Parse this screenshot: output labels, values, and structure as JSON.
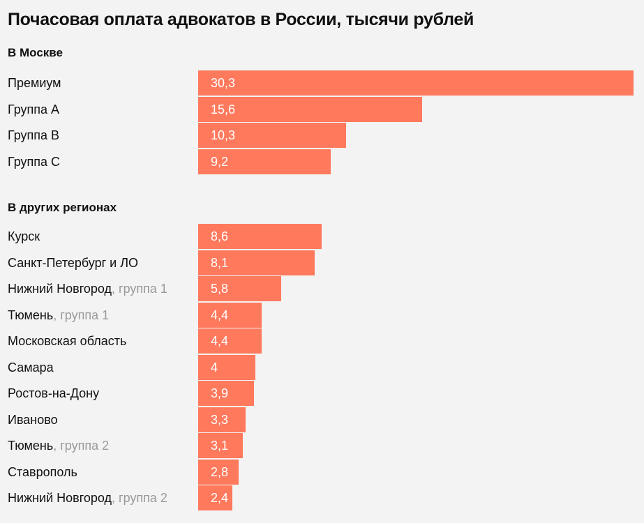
{
  "chart_data": {
    "type": "bar",
    "orientation": "horizontal",
    "title": "Почасовая оплата адвокатов в России, тысячи рублей",
    "bar_color": "#ff795d",
    "xlim": [
      0,
      30.3
    ],
    "groups": [
      {
        "title": "В Москве",
        "rows": [
          {
            "category": "Премиум",
            "note": "",
            "value": 30.3,
            "label": "30,3"
          },
          {
            "category": "Группа A",
            "note": "",
            "value": 15.6,
            "label": "15,6"
          },
          {
            "category": "Группа B",
            "note": "",
            "value": 10.3,
            "label": "10,3"
          },
          {
            "category": "Группа C",
            "note": "",
            "value": 9.2,
            "label": "9,2"
          }
        ]
      },
      {
        "title": "В других регионах",
        "rows": [
          {
            "category": "Курск",
            "note": "",
            "value": 8.6,
            "label": "8,6"
          },
          {
            "category": "Санкт-Петербург и ЛО",
            "note": "",
            "value": 8.1,
            "label": "8,1"
          },
          {
            "category": "Нижний Новгород",
            "note": ", группа 1",
            "value": 5.8,
            "label": "5,8"
          },
          {
            "category": "Тюмень",
            "note": ", группа 1",
            "value": 4.4,
            "label": "4,4"
          },
          {
            "category": "Московская область",
            "note": "",
            "value": 4.4,
            "label": "4,4"
          },
          {
            "category": "Самара",
            "note": "",
            "value": 4.0,
            "label": "4"
          },
          {
            "category": "Ростов-на-Дону",
            "note": "",
            "value": 3.9,
            "label": "3,9"
          },
          {
            "category": "Иваново",
            "note": "",
            "value": 3.3,
            "label": "3,3"
          },
          {
            "category": "Тюмень",
            "note": ", группа 2",
            "value": 3.1,
            "label": "3,1"
          },
          {
            "category": "Ставрополь",
            "note": "",
            "value": 2.8,
            "label": "2,8"
          },
          {
            "category": "Нижний Новгород",
            "note": ", группа 2",
            "value": 2.4,
            "label": "2,4"
          }
        ]
      }
    ]
  }
}
